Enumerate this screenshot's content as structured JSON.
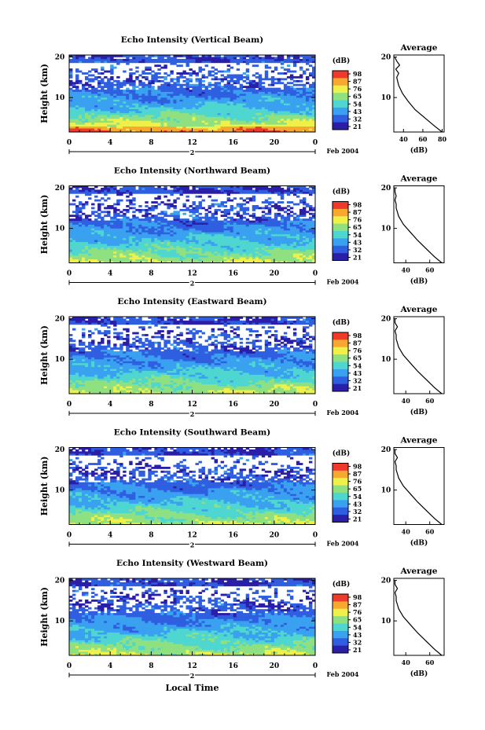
{
  "figure": {
    "date_label": "Feb 2004",
    "xaxis_label": "Local Time",
    "height_label": "Height (km)",
    "colorbar_unit": "(dB)",
    "average_title": "Average",
    "average_xlabel": "(dB)",
    "colorbar_ticks": [
      "98",
      "87",
      "76",
      "65",
      "54",
      "43",
      "32",
      "21"
    ],
    "colorbar_colors": [
      "#2a1fa8",
      "#2f5fe0",
      "#3aa0f0",
      "#4fd6d0",
      "#8fe080",
      "#f0f04a",
      "#f7a830",
      "#ee3a2a"
    ]
  },
  "chart_data": [
    {
      "type": "heatmap",
      "title": "Echo Intensity (Vertical Beam)",
      "xlabel": "Local Time",
      "ylabel": "Height (km)",
      "x_ticks": [
        "0",
        "4",
        "8",
        "12",
        "16",
        "20",
        "0"
      ],
      "x_sublabel": "2",
      "y_ticks": [
        "20",
        "10"
      ],
      "xlim": [
        0,
        24
      ],
      "ylim": [
        1.5,
        20.5
      ],
      "colorbar_range_db": [
        21,
        98
      ],
      "profile": {
        "title": "Average",
        "xlabel": "(dB)",
        "x_ticks": [
          "40",
          "60",
          "80"
        ],
        "xlim": [
          30,
          82
        ],
        "height_km": [
          1.5,
          3,
          5,
          7,
          9,
          11,
          12,
          13,
          14,
          15,
          16,
          17,
          18,
          19,
          20
        ],
        "value_db": [
          80,
          72,
          62,
          52,
          45,
          39,
          37,
          35,
          34,
          33,
          35,
          32,
          36,
          33,
          31
        ]
      }
    },
    {
      "type": "heatmap",
      "title": "Echo Intensity (Northward Beam)",
      "xlabel": "Local Time",
      "ylabel": "Height (km)",
      "x_ticks": [
        "0",
        "4",
        "8",
        "12",
        "16",
        "20",
        "0"
      ],
      "x_sublabel": "2",
      "y_ticks": [
        "20",
        "10"
      ],
      "xlim": [
        0,
        24
      ],
      "ylim": [
        1.5,
        20.5
      ],
      "colorbar_range_db": [
        21,
        98
      ],
      "profile": {
        "title": "Average",
        "xlabel": "(dB)",
        "x_ticks": [
          "40",
          "60"
        ],
        "xlim": [
          30,
          72
        ],
        "height_km": [
          1.5,
          3,
          5,
          7,
          9,
          11,
          12,
          13,
          14,
          15,
          16,
          17,
          18,
          19,
          20
        ],
        "value_db": [
          70,
          64,
          57,
          50,
          44,
          38,
          36,
          34,
          33,
          32,
          32,
          31,
          32,
          31,
          31
        ]
      }
    },
    {
      "type": "heatmap",
      "title": "Echo Intensity (Eastward Beam)",
      "xlabel": "Local Time",
      "ylabel": "Height (km)",
      "x_ticks": [
        "0",
        "4",
        "8",
        "12",
        "16",
        "20",
        "0"
      ],
      "x_sublabel": "2",
      "y_ticks": [
        "20",
        "10"
      ],
      "xlim": [
        0,
        24
      ],
      "ylim": [
        1.5,
        20.5
      ],
      "colorbar_range_db": [
        21,
        98
      ],
      "profile": {
        "title": "Average",
        "xlabel": "(dB)",
        "x_ticks": [
          "40",
          "60"
        ],
        "xlim": [
          30,
          72
        ],
        "height_km": [
          1.5,
          3,
          5,
          7,
          9,
          11,
          12,
          13,
          14,
          15,
          16,
          17,
          18,
          19,
          20
        ],
        "value_db": [
          70,
          64,
          57,
          50,
          44,
          38,
          36,
          34,
          33,
          32,
          32,
          31,
          33,
          31,
          31
        ]
      }
    },
    {
      "type": "heatmap",
      "title": "Echo Intensity (Southward Beam)",
      "xlabel": "Local Time",
      "ylabel": "Height (km)",
      "x_ticks": [
        "0",
        "4",
        "8",
        "12",
        "16",
        "20",
        "0"
      ],
      "x_sublabel": "2",
      "y_ticks": [
        "20",
        "10"
      ],
      "xlim": [
        0,
        24
      ],
      "ylim": [
        1.5,
        20.5
      ],
      "colorbar_range_db": [
        21,
        98
      ],
      "profile": {
        "title": "Average",
        "xlabel": "(dB)",
        "x_ticks": [
          "40",
          "60"
        ],
        "xlim": [
          30,
          72
        ],
        "height_km": [
          1.5,
          3,
          5,
          7,
          9,
          11,
          12,
          13,
          14,
          15,
          16,
          17,
          18,
          19,
          20
        ],
        "value_db": [
          70,
          64,
          57,
          50,
          44,
          38,
          36,
          34,
          33,
          32,
          32,
          31,
          33,
          31,
          31
        ]
      }
    },
    {
      "type": "heatmap",
      "title": "Echo Intensity (Westward Beam)",
      "xlabel": "Local Time",
      "ylabel": "Height (km)",
      "x_ticks": [
        "0",
        "4",
        "8",
        "12",
        "16",
        "20",
        "0"
      ],
      "x_sublabel": "2",
      "y_ticks": [
        "20",
        "10"
      ],
      "xlim": [
        0,
        24
      ],
      "ylim": [
        1.5,
        20.5
      ],
      "colorbar_range_db": [
        21,
        98
      ],
      "profile": {
        "title": "Average",
        "xlabel": "(dB)",
        "x_ticks": [
          "40",
          "60"
        ],
        "xlim": [
          30,
          72
        ],
        "height_km": [
          1.5,
          3,
          5,
          7,
          9,
          11,
          12,
          13,
          14,
          15,
          16,
          17,
          18,
          19,
          20
        ],
        "value_db": [
          70,
          64,
          57,
          50,
          44,
          38,
          36,
          34,
          33,
          32,
          32,
          31,
          33,
          31,
          31
        ]
      }
    }
  ]
}
